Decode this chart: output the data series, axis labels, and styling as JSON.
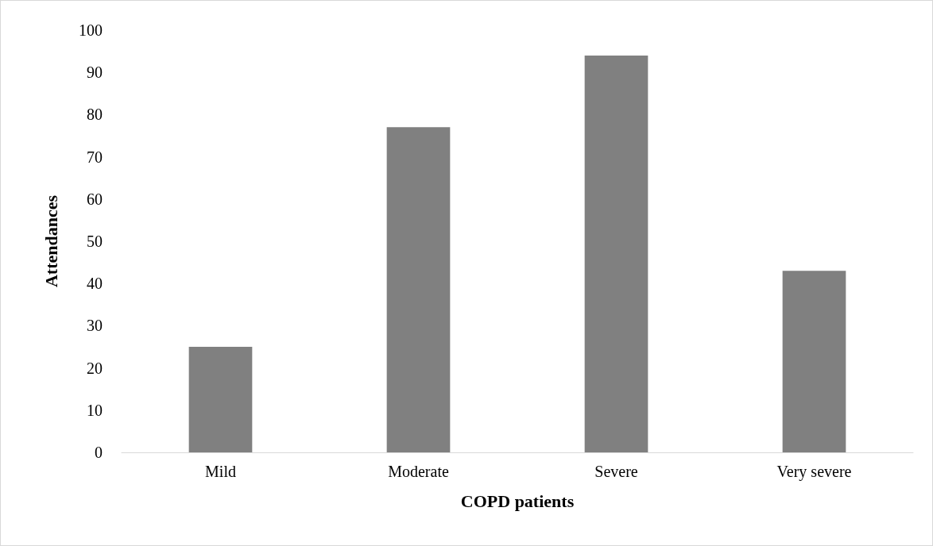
{
  "chart_data": {
    "type": "bar",
    "xlabel": "COPD patients",
    "ylabel": "Attendances",
    "categories": [
      "Mild",
      "Moderate",
      "Severe",
      "Very severe"
    ],
    "values": [
      25,
      77,
      94,
      43
    ],
    "color": "#808080",
    "ylim": [
      0,
      100
    ],
    "yticks": [
      0,
      10,
      20,
      30,
      40,
      50,
      60,
      70,
      80,
      90,
      100
    ],
    "grid": false
  }
}
